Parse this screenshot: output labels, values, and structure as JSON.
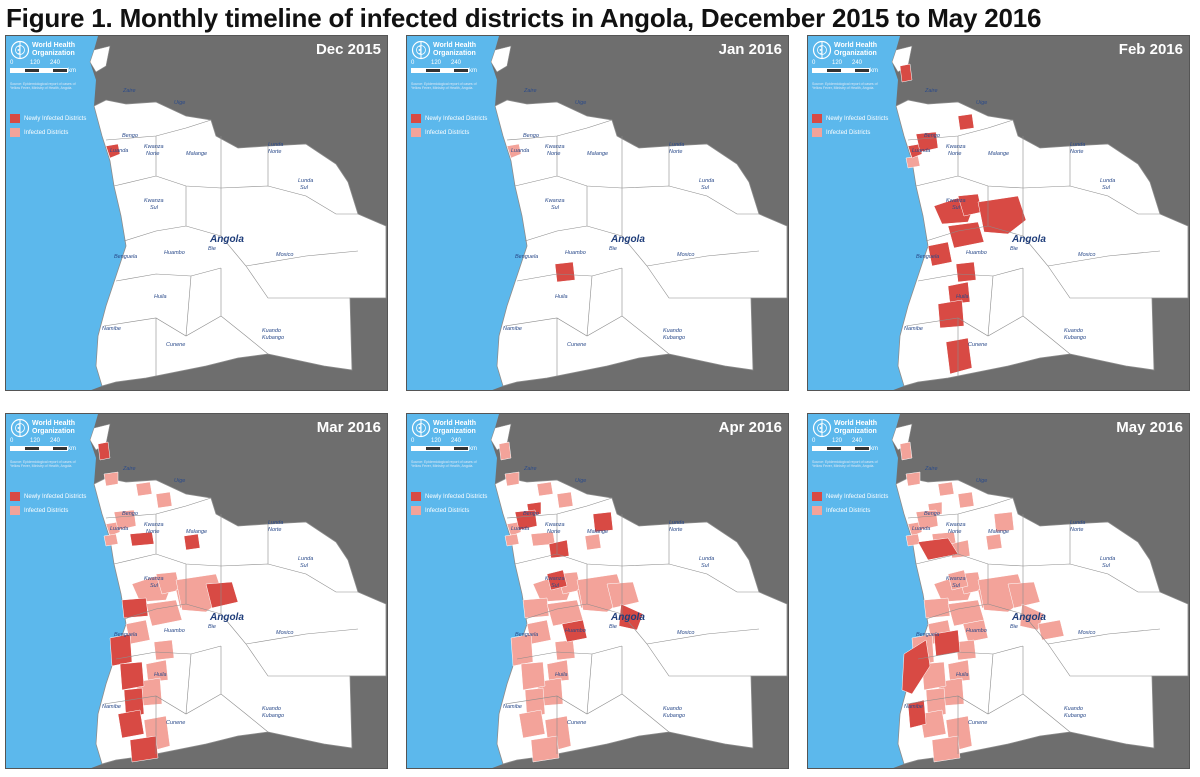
{
  "title": "Figure 1. Monthly timeline of infected districts in Angola, December 2015 to May 2016",
  "colors": {
    "ocean": "#5cb8ec",
    "land_outside": "#6e6e6e",
    "angola": "#ffffff",
    "border": "#8c8c8c",
    "newly_infected": "#d84a44",
    "infected": "#f3a39a"
  },
  "common": {
    "org_line1": "World Health",
    "org_line2": "Organization",
    "scale_0": "0",
    "scale_120": "120",
    "scale_240": "240",
    "scale_unit": "km",
    "source_note": "Source: Epidemiological report of cases of Yellow Fever, Ministry of Health, Angola.",
    "legend_new": "Newly Infected Districts",
    "legend_infected": "Infected Districts",
    "country": "Angola",
    "provinces": [
      "Zaire",
      "Uige",
      "Bengo",
      "Luanda",
      "Kwanza Norte",
      "Malange",
      "Lunda Norte",
      "Lunda Sul",
      "Kwanza Sul",
      "Bie",
      "Huambo",
      "Benguela",
      "Moxico",
      "Huila",
      "Namibe",
      "Cunene",
      "Kuando Kubango"
    ]
  },
  "panels": [
    {
      "label": "Dec 2015",
      "new": [
        "d_lua"
      ],
      "infected": []
    },
    {
      "label": "Jan 2016",
      "new": [
        "d_hui1"
      ],
      "infected": [
        "d_lua"
      ]
    },
    {
      "label": "Feb 2016",
      "new": [
        "d_zai",
        "d_uig1",
        "d_lua",
        "d_bgo",
        "d_ks1",
        "d_ks2",
        "d_hua1",
        "d_bie1",
        "d_ben1",
        "d_hui1",
        "d_hui2",
        "d_hui3",
        "d_cun1"
      ],
      "infected": [
        "d_lua2"
      ]
    },
    {
      "label": "Mar 2016",
      "new": [
        "d_zai",
        "d_bie2",
        "d_ks3",
        "d_ben2",
        "d_hui4",
        "d_hui5",
        "d_nam1",
        "d_cun2",
        "d_mal1",
        "d_kn1"
      ],
      "infected": [
        "d_lua",
        "d_lua2",
        "d_bgo",
        "d_uig1",
        "d_uig2",
        "d_ks1",
        "d_ks2",
        "d_hua1",
        "d_hua2",
        "d_bie1",
        "d_ben1",
        "d_hui1",
        "d_hui2",
        "d_hui3",
        "d_cun1",
        "d_zai2"
      ]
    },
    {
      "label": "Apr 2016",
      "new": [
        "d_uig3",
        "d_mal2",
        "d_kn2",
        "d_ks4",
        "d_bie3",
        "d_hua3",
        "d_bgo"
      ],
      "infected": [
        "d_zai",
        "d_zai2",
        "d_uig1",
        "d_uig2",
        "d_lua",
        "d_lua2",
        "d_kn1",
        "d_ks1",
        "d_ks2",
        "d_ks3",
        "d_hua1",
        "d_hua2",
        "d_bie1",
        "d_bie2",
        "d_ben1",
        "d_ben2",
        "d_hui1",
        "d_hui2",
        "d_hui3",
        "d_hui4",
        "d_hui5",
        "d_nam1",
        "d_cun1",
        "d_cun2",
        "d_mal1"
      ]
    },
    {
      "label": "May 2016",
      "new": [
        "d_kn3",
        "d_ben3",
        "d_nam2",
        "d_hui6"
      ],
      "infected": [
        "d_zai",
        "d_zai2",
        "d_uig1",
        "d_uig2",
        "d_uig3",
        "d_lua",
        "d_lua2",
        "d_bgo",
        "d_kn1",
        "d_kn2",
        "d_mal1",
        "d_mal2",
        "d_ks1",
        "d_ks2",
        "d_ks3",
        "d_ks4",
        "d_hua1",
        "d_hua2",
        "d_hua3",
        "d_bie1",
        "d_bie2",
        "d_bie3",
        "d_ben1",
        "d_ben2",
        "d_hui1",
        "d_hui2",
        "d_hui3",
        "d_hui4",
        "d_hui5",
        "d_nam1",
        "d_cun1",
        "d_cun2",
        "d_lsul1"
      ]
    }
  ]
}
